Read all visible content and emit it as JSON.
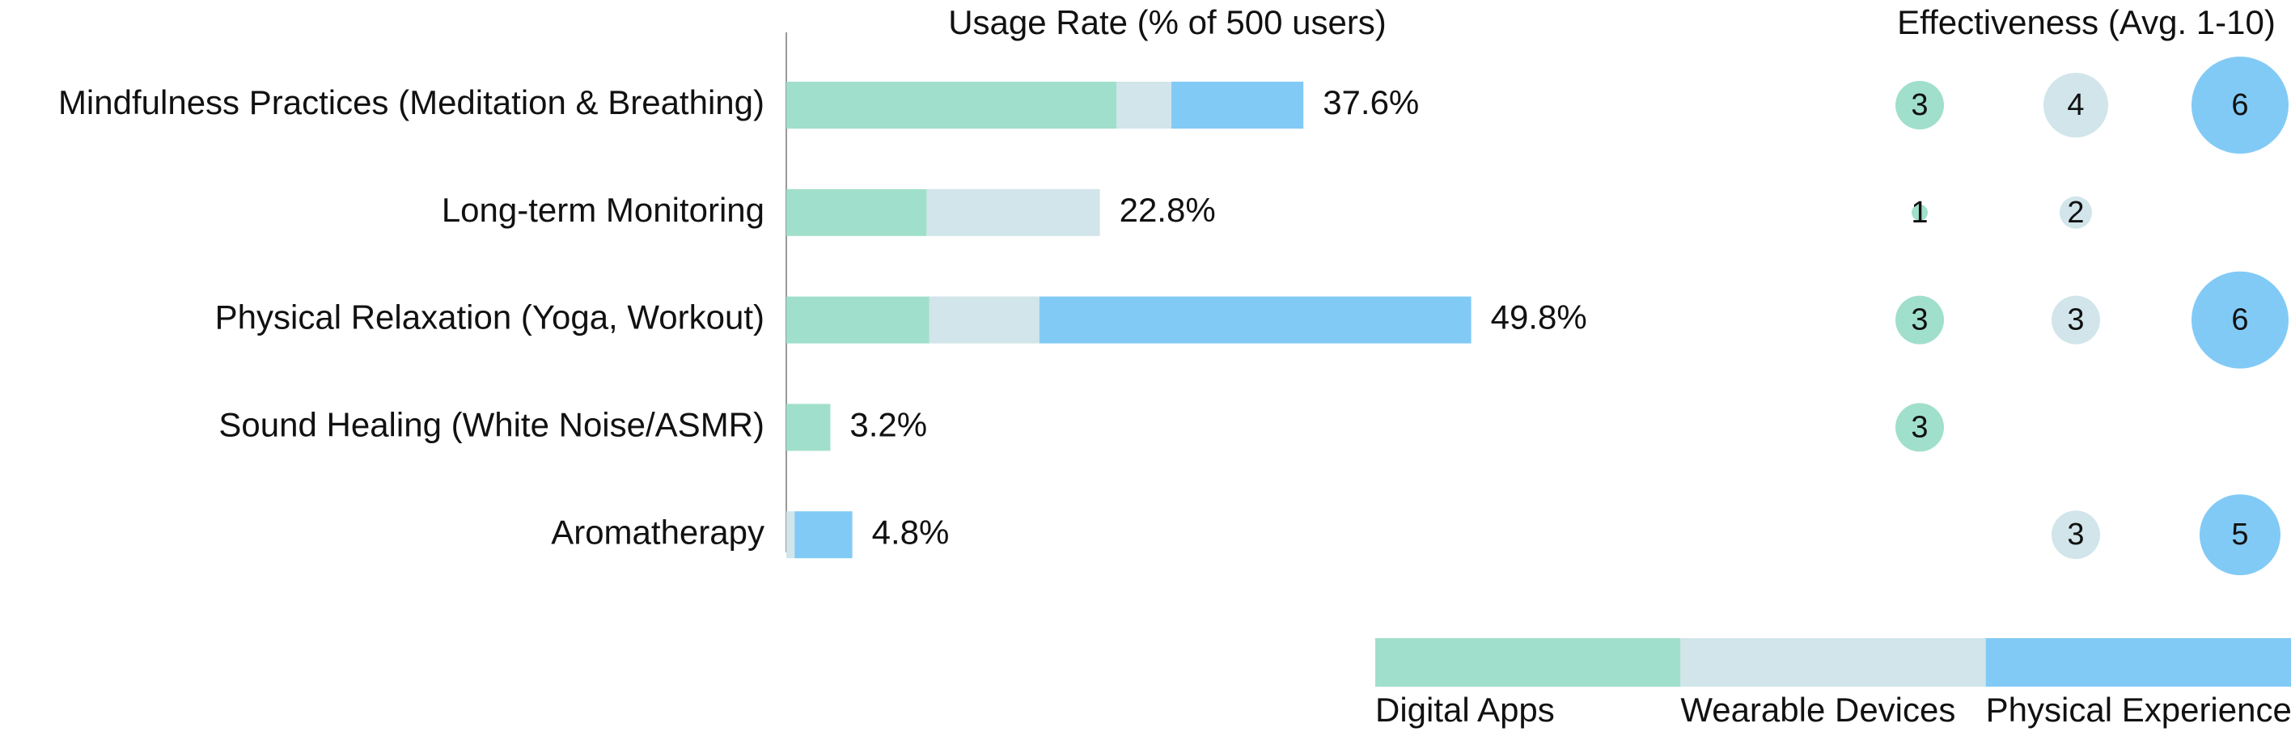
{
  "chart_data": {
    "type": "bar",
    "title": "Usage Rate (% of 500 users)",
    "effectiveness_title": "Effectiveness (Avg. 1-10)",
    "categories": [
      "Mindfulness Practices (Meditation & Breathing)",
      "Long-term Monitoring",
      "Physical Relaxation (Yoga, Workout)",
      "Sound Healing (White Noise/ASMR)",
      "Aromatherapy"
    ],
    "series": [
      {
        "name": "Digital Apps",
        "color": "#a0dfcb",
        "values": [
          24.0,
          10.2,
          10.4,
          3.2,
          null
        ],
        "effectiveness": [
          3,
          1,
          3,
          3,
          null
        ]
      },
      {
        "name": "Wearable Devices",
        "color": "#d1e5ea",
        "values": [
          4.0,
          12.6,
          8.0,
          null,
          0.6
        ],
        "effectiveness": [
          4,
          2,
          3,
          null,
          3
        ]
      },
      {
        "name": "Physical Experience",
        "color": "#82caf6",
        "values": [
          9.6,
          null,
          31.4,
          null,
          4.2
        ],
        "effectiveness": [
          6,
          null,
          6,
          null,
          5
        ]
      }
    ],
    "totals": [
      37.6,
      22.8,
      49.8,
      3.2,
      4.8
    ],
    "total_labels": [
      "37.6%",
      "22.8%",
      "49.8%",
      "3.2%",
      "4.8%"
    ],
    "xlim": [
      0,
      50
    ]
  }
}
